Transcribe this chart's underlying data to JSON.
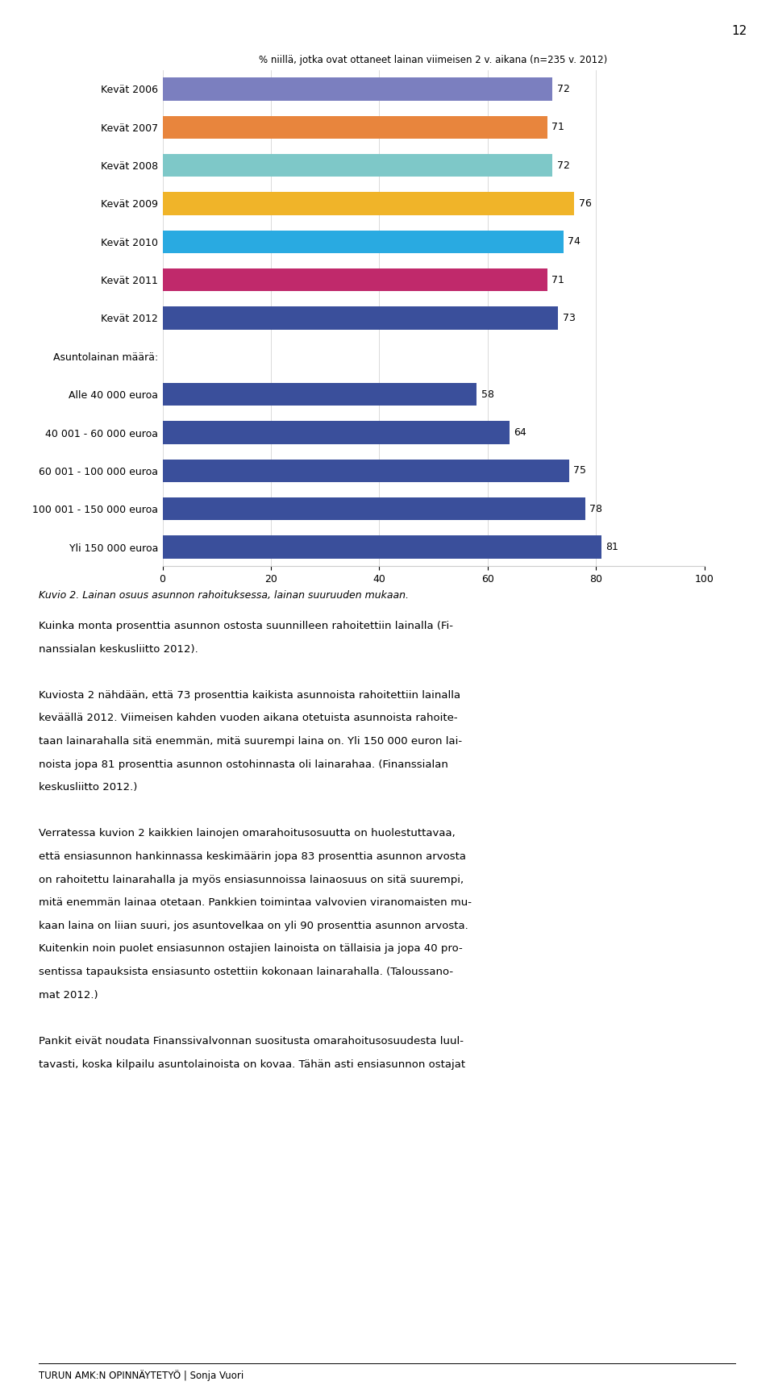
{
  "categories": [
    "Kevät 2006",
    "Kevät 2007",
    "Kevät 2008",
    "Kevät 2009",
    "Kevät 2010",
    "Kevät 2011",
    "Kevät 2012",
    "Asuntolainan määrä:",
    "Alle 40 000 euroa",
    "40 001 - 60 000 euroa",
    "60 001 - 100 000 euroa",
    "100 001 - 150 000 euroa",
    "Yli 150 000 euroa"
  ],
  "values": [
    72,
    71,
    72,
    76,
    74,
    71,
    73,
    null,
    58,
    64,
    75,
    78,
    81
  ],
  "colors": [
    "#7b7fbf",
    "#e8853d",
    "#7ec8c8",
    "#f0b429",
    "#29aae1",
    "#c0296b",
    "#3a4f9b",
    null,
    "#3a4f9b",
    "#3a4f9b",
    "#3a4f9b",
    "#3a4f9b",
    "#3a4f9b"
  ],
  "chart_title": "% niillä, jotka ovat ottaneet lainan viimeisen 2 v. aikana (n=235 v. 2012)",
  "xlim": [
    0,
    100
  ],
  "xticks": [
    0,
    20,
    40,
    60,
    80,
    100
  ],
  "page_number": "12",
  "footer_left": "TURUN AMK:N OPINNÄYTETYÖ | Sonja Vuori",
  "caption": "Kuvio 2. Lainan osuus asunnon rahoituksessa, lainan suuruuden mukaan.",
  "body_lines": [
    "Kuinka monta prosenttia asunnon ostosta suunnilleen rahoitettiin lainalla (Fi-",
    "nanssialan keskusliitto 2012).",
    "",
    "Kuviosta 2 nähdään, että 73 prosenttia kaikista asunnoista rahoitettiin lainalla",
    "keväällä 2012. Viimeisen kahden vuoden aikana otetuista asunnoista rahoite-",
    "taan lainarahalla sitä enemmän, mitä suurempi laina on. Yli 150 000 euron lai-",
    "noista jopa 81 prosenttia asunnon ostohinnasta oli lainarahaa. (Finanssialan",
    "keskusliitto 2012.)",
    "",
    "Verratessa kuvion 2 kaikkien lainojen omarahoitusosuutta on huolestuttavaa,",
    "että ensiasunnon hankinnassa keskimäärin jopa 83 prosenttia asunnon arvosta",
    "on rahoitettu lainarahalla ja myös ensiasunnoissa lainaosuus on sitä suurempi,",
    "mitä enemmän lainaa otetaan. Pankkien toimintaa valvovien viranomaisten mu-",
    "kaan laina on liian suuri, jos asuntovelkaa on yli 90 prosenttia asunnon arvosta.",
    "Kuitenkin noin puolet ensiasunnon ostajien lainoista on tällaisia ja jopa 40 pro-",
    "sentissa tapauksista ensiasunto ostettiin kokonaan lainarahalla. (Taloussano-",
    "mat 2012.)",
    "",
    "Pankit eivät noudata Finanssivalvonnan suositusta omarahoitusosuudesta luul-",
    "tavasti, koska kilpailu asuntolainoista on kovaa. Tähän asti ensiasunnon ostajat"
  ]
}
